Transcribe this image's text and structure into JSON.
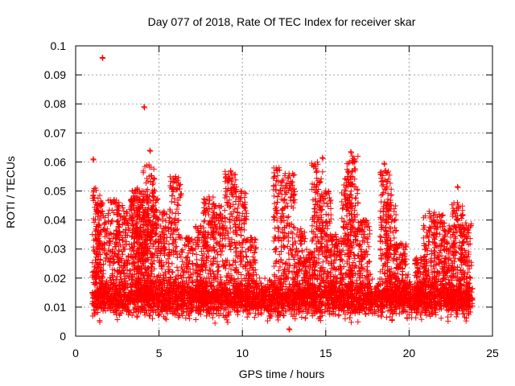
{
  "chart_data": {
    "type": "scatter",
    "title": "Day 077 of 2018, Rate Of TEC Index for receiver skar",
    "xlabel": "GPS time / hours",
    "ylabel": "ROTI / TECUs",
    "xlim": [
      0,
      25
    ],
    "ylim": [
      0,
      0.1
    ],
    "x_ticks": [
      0,
      5,
      10,
      15,
      20,
      25
    ],
    "x_tick_labels": [
      "0",
      "5",
      "10",
      "15",
      "20",
      "25"
    ],
    "y_ticks": [
      0,
      0.01,
      0.02,
      0.03,
      0.04,
      0.05,
      0.06,
      0.07,
      0.08,
      0.09,
      0.1
    ],
    "y_tick_labels": [
      "0",
      "0.01",
      "0.02",
      "0.03",
      "0.04",
      "0.05",
      "0.06",
      "0.07",
      "0.08",
      "0.09",
      "0.1"
    ],
    "grid": true,
    "marker": "+",
    "series_color": "#ff0000",
    "data_range_x": [
      1.0,
      23.8
    ],
    "baseline_range_y": [
      0.004,
      0.02
    ],
    "outliers": [
      {
        "x": 1.6,
        "y": 0.096
      },
      {
        "x": 1.05,
        "y": 0.061
      },
      {
        "x": 4.1,
        "y": 0.079
      },
      {
        "x": 4.45,
        "y": 0.064
      },
      {
        "x": 12.8,
        "y": 0.0025
      },
      {
        "x": 14.8,
        "y": 0.0615
      },
      {
        "x": 16.5,
        "y": 0.0635
      },
      {
        "x": 18.5,
        "y": 0.0595
      },
      {
        "x": 22.9,
        "y": 0.0515
      }
    ],
    "peaks": [
      {
        "x": 1.2,
        "y": 0.051
      },
      {
        "x": 1.55,
        "y": 0.046
      },
      {
        "x": 2.3,
        "y": 0.047
      },
      {
        "x": 2.8,
        "y": 0.045
      },
      {
        "x": 3.5,
        "y": 0.048
      },
      {
        "x": 3.7,
        "y": 0.051
      },
      {
        "x": 4.0,
        "y": 0.045
      },
      {
        "x": 4.4,
        "y": 0.059
      },
      {
        "x": 4.6,
        "y": 0.05
      },
      {
        "x": 5.3,
        "y": 0.043
      },
      {
        "x": 6.0,
        "y": 0.055
      },
      {
        "x": 6.7,
        "y": 0.034
      },
      {
        "x": 7.5,
        "y": 0.038
      },
      {
        "x": 8.0,
        "y": 0.048
      },
      {
        "x": 8.6,
        "y": 0.045
      },
      {
        "x": 9.3,
        "y": 0.057
      },
      {
        "x": 9.9,
        "y": 0.05
      },
      {
        "x": 10.5,
        "y": 0.034
      },
      {
        "x": 12.2,
        "y": 0.058
      },
      {
        "x": 12.8,
        "y": 0.056
      },
      {
        "x": 13.5,
        "y": 0.037
      },
      {
        "x": 14.0,
        "y": 0.029
      },
      {
        "x": 14.5,
        "y": 0.06
      },
      {
        "x": 15.0,
        "y": 0.05
      },
      {
        "x": 15.6,
        "y": 0.035
      },
      {
        "x": 16.3,
        "y": 0.055
      },
      {
        "x": 16.6,
        "y": 0.062
      },
      {
        "x": 17.3,
        "y": 0.04
      },
      {
        "x": 18.6,
        "y": 0.057
      },
      {
        "x": 18.9,
        "y": 0.046
      },
      {
        "x": 19.5,
        "y": 0.032
      },
      {
        "x": 20.7,
        "y": 0.027
      },
      {
        "x": 21.2,
        "y": 0.043
      },
      {
        "x": 21.8,
        "y": 0.042
      },
      {
        "x": 22.4,
        "y": 0.038
      },
      {
        "x": 22.9,
        "y": 0.046
      },
      {
        "x": 23.4,
        "y": 0.039
      }
    ]
  }
}
